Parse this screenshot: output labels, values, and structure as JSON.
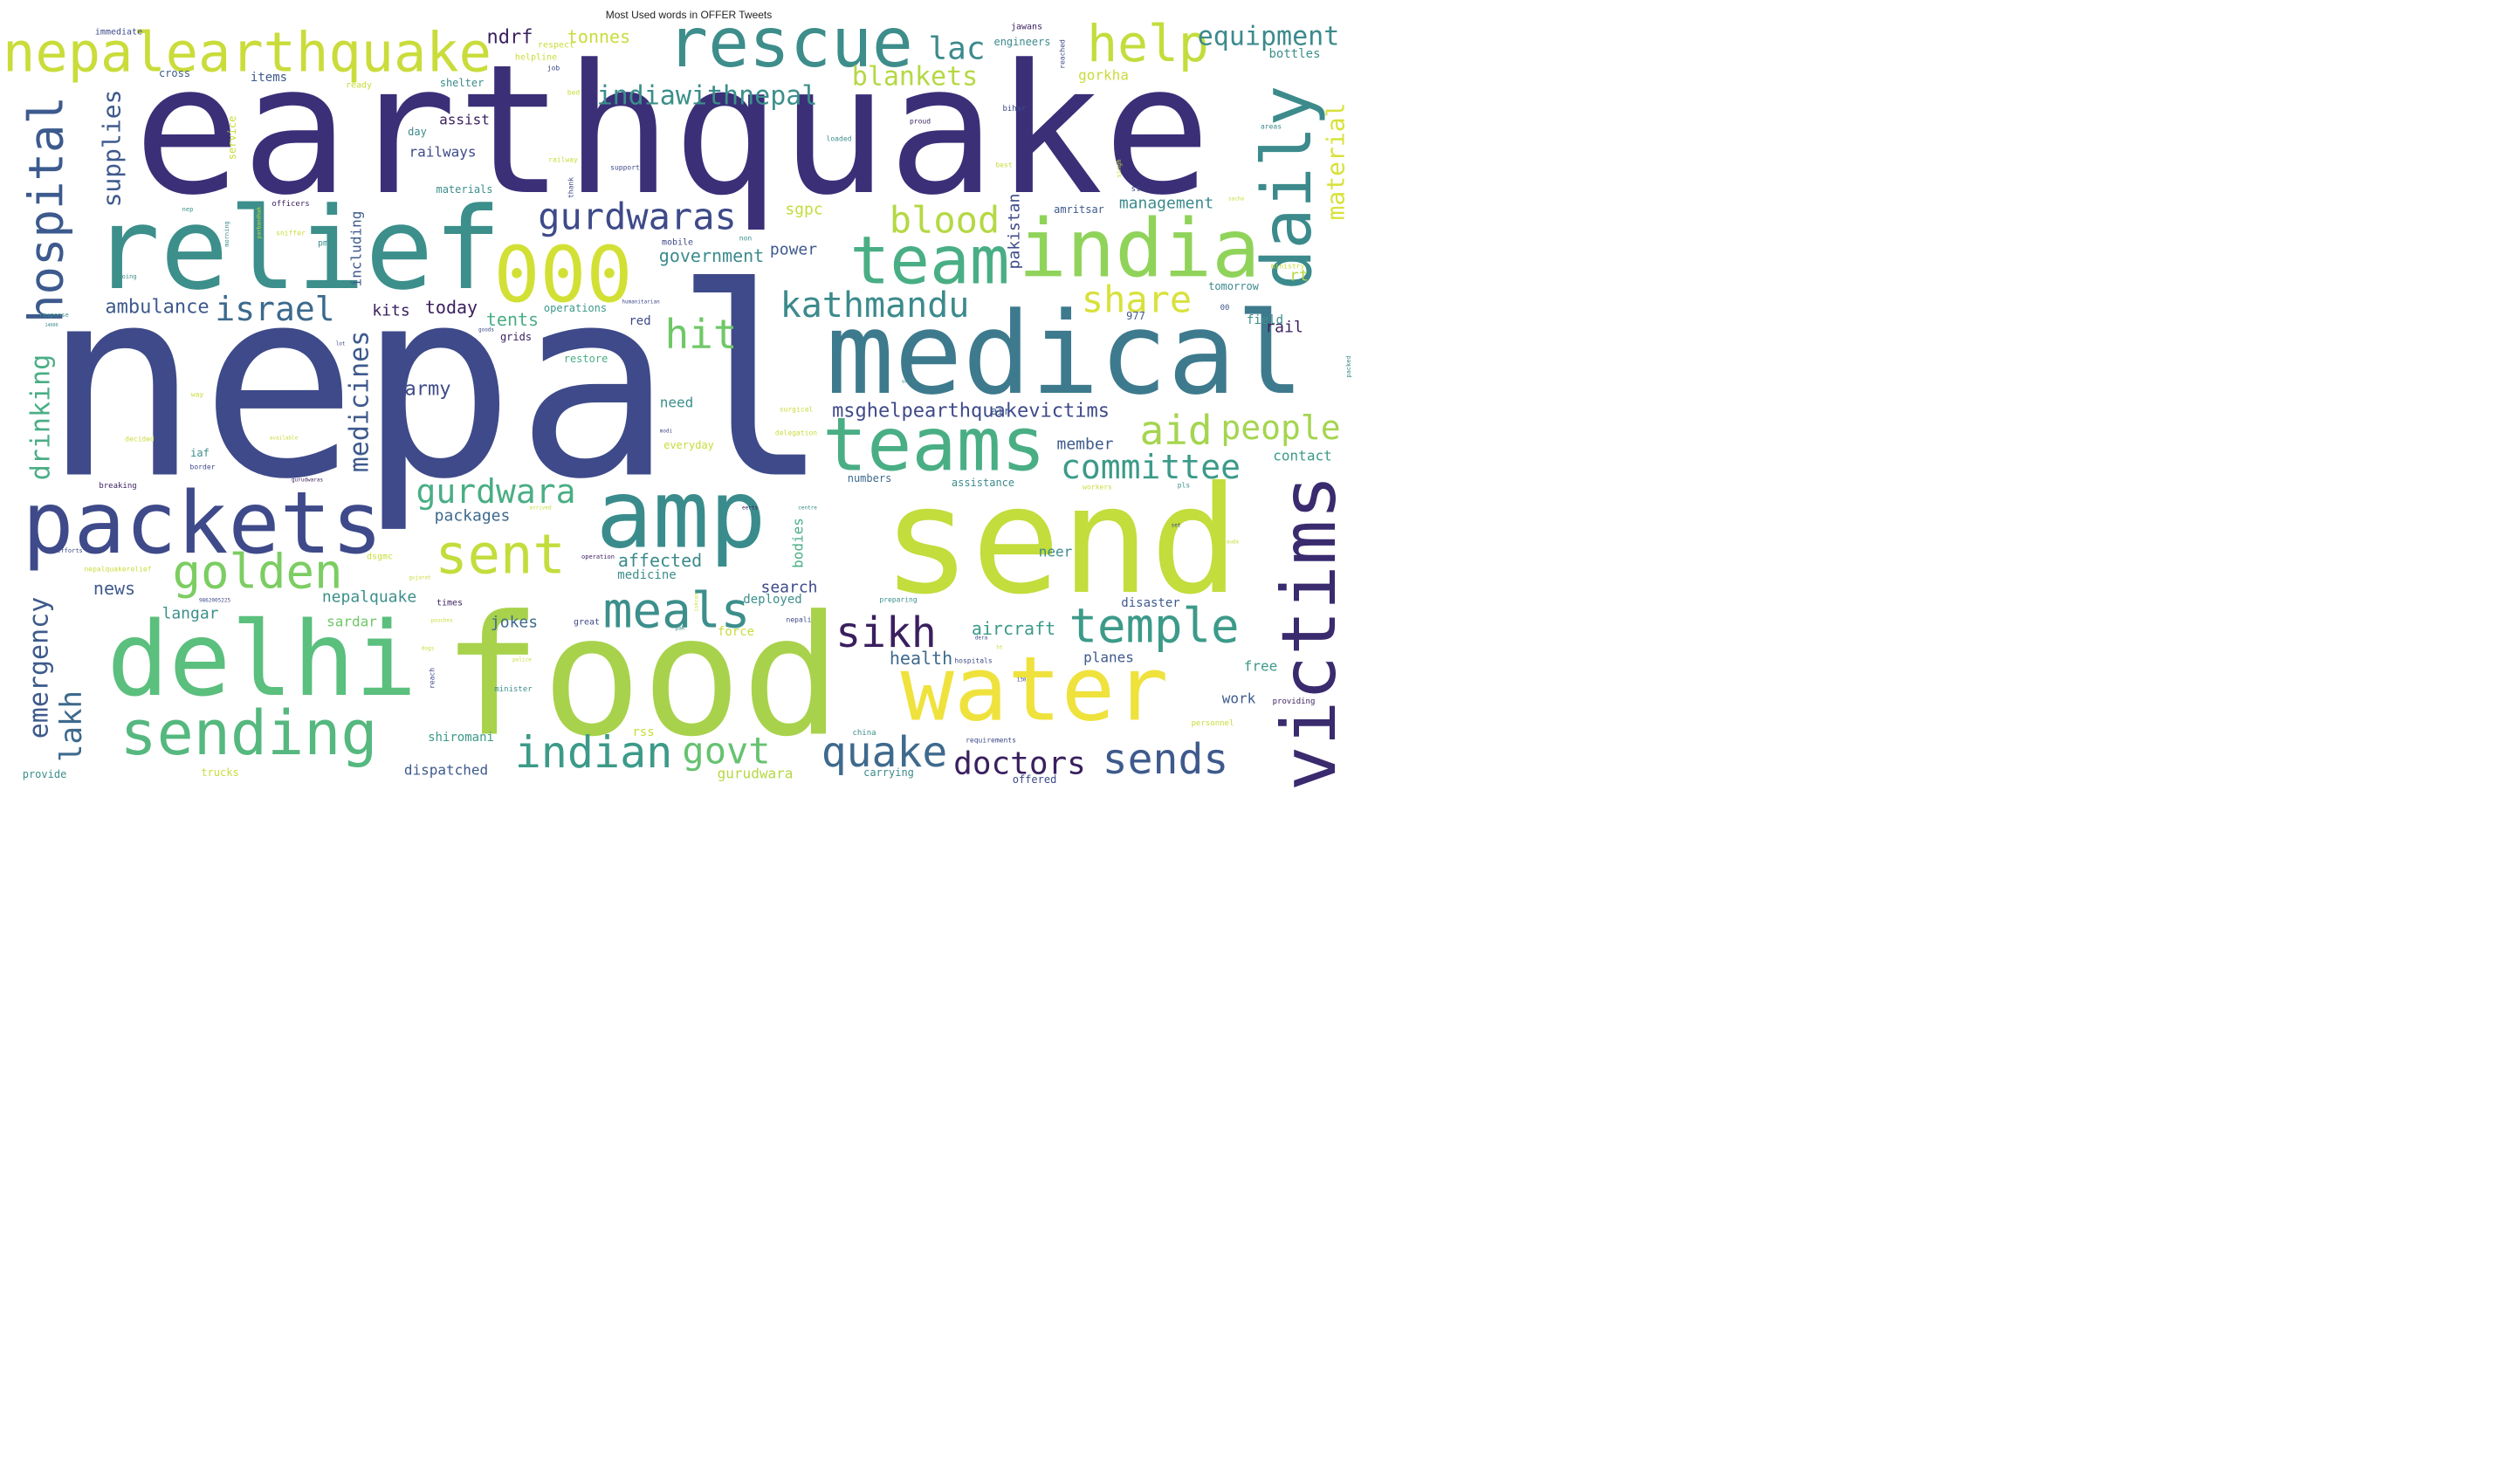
{
  "title": "Most Used words in OFFER Tweets",
  "words": [
    {
      "text": "nepal",
      "color": "#3e4a89"
    },
    {
      "text": "earthquake",
      "color": "#3b2f78"
    },
    {
      "text": "food",
      "color": "#a8d24b"
    },
    {
      "text": "send",
      "color": "#c2dd3c"
    },
    {
      "text": "medical",
      "color": "#3e7a8d"
    },
    {
      "text": "relief",
      "color": "#3c8f8b"
    },
    {
      "text": "delhi",
      "color": "#5bbf7d"
    },
    {
      "text": "packets",
      "color": "#3e4a89"
    },
    {
      "text": "amp",
      "color": "#3a8c8c"
    },
    {
      "text": "water",
      "color": "#efe23d"
    },
    {
      "text": "india",
      "color": "#90d35a"
    },
    {
      "text": "teams",
      "color": "#4aae85"
    },
    {
      "text": "team",
      "color": "#4aae85"
    },
    {
      "text": "000",
      "color": "#d2e035"
    },
    {
      "text": "rescue",
      "color": "#3d8d8b"
    },
    {
      "text": "victims",
      "color": "#3a2a6e"
    },
    {
      "text": "nepalearthquake",
      "color": "#c9dc3a"
    },
    {
      "text": "sending",
      "color": "#55b87f"
    },
    {
      "text": "daily",
      "color": "#3c8a8c"
    },
    {
      "text": "help",
      "color": "#c2dd3c"
    },
    {
      "text": "hospital",
      "color": "#3c5a8d"
    },
    {
      "text": "sent",
      "color": "#c2dd3c"
    },
    {
      "text": "golden",
      "color": "#7ccd62"
    },
    {
      "text": "meals",
      "color": "#3c8f8b"
    },
    {
      "text": "temple",
      "color": "#3c9a89"
    },
    {
      "text": "indian",
      "color": "#3c9a89"
    },
    {
      "text": "quake",
      "color": "#3e6a8d"
    },
    {
      "text": "sends",
      "color": "#3e5a8c"
    },
    {
      "text": "doctors",
      "color": "#3a1f5e"
    },
    {
      "text": "govt",
      "color": "#66c270"
    },
    {
      "text": "sikh",
      "color": "#3a1f5e"
    },
    {
      "text": "emergency",
      "color": "#3e5a8c"
    },
    {
      "text": "drinking",
      "color": "#4aae85"
    },
    {
      "text": "medicines",
      "color": "#3e5a8c"
    },
    {
      "text": "kathmandu",
      "color": "#3c8a8c"
    },
    {
      "text": "hit",
      "color": "#70c868"
    },
    {
      "text": "aid",
      "color": "#a5d550"
    },
    {
      "text": "people",
      "color": "#a5d550"
    },
    {
      "text": "committee",
      "color": "#3c9a89"
    },
    {
      "text": "gurdwara",
      "color": "#4aae85"
    },
    {
      "text": "gurdwaras",
      "color": "#3e4a89"
    },
    {
      "text": "blood",
      "color": "#b5d844"
    },
    {
      "text": "share",
      "color": "#d8e13a"
    },
    {
      "text": "israel",
      "color": "#3c6a8d"
    },
    {
      "text": "supplies",
      "color": "#3e5a8c"
    },
    {
      "text": "lakh",
      "color": "#3e6a8d"
    },
    {
      "text": "material",
      "color": "#d8e13a"
    },
    {
      "text": "equipment",
      "color": "#3c8a8c"
    },
    {
      "text": "lac",
      "color": "#3c8a8c"
    },
    {
      "text": "indiawithnepal",
      "color": "#3c8f8b"
    },
    {
      "text": "blankets",
      "color": "#b5d844"
    },
    {
      "text": "ambulance",
      "color": "#3e5a8c"
    },
    {
      "text": "msghelpearthquakevictims",
      "color": "#3e4a89"
    },
    {
      "text": "ndrf",
      "color": "#3a1f5e"
    },
    {
      "text": "tonnes",
      "color": "#c9dc3a"
    },
    {
      "text": "army",
      "color": "#3e4a89"
    },
    {
      "text": "volunteers",
      "color": "#3e5a8c"
    },
    {
      "text": "aircraft",
      "color": "#3c9a89"
    },
    {
      "text": "health",
      "color": "#3e6a8d"
    },
    {
      "text": "tents",
      "color": "#4aae85"
    },
    {
      "text": "today",
      "color": "#3a1f5e"
    },
    {
      "text": "kits",
      "color": "#3a1f5e"
    },
    {
      "text": "government",
      "color": "#3c8a8c"
    },
    {
      "text": "management",
      "color": "#3c8a8c"
    },
    {
      "text": "pakistan",
      "color": "#3e4a89"
    },
    {
      "text": "rail",
      "color": "#3a1f5e"
    },
    {
      "text": "affected",
      "color": "#3c8a8c"
    },
    {
      "text": "sgpc",
      "color": "#c2dd3c"
    },
    {
      "text": "power",
      "color": "#3e5a8c"
    },
    {
      "text": "rt",
      "color": "#b5d844"
    },
    {
      "text": "news",
      "color": "#3e5a8c"
    },
    {
      "text": "packages",
      "color": "#3e6a8d"
    },
    {
      "text": "search",
      "color": "#3e4a89"
    },
    {
      "text": "nepalquake",
      "color": "#3c8f8b"
    },
    {
      "text": "langar",
      "color": "#3c8f8b"
    },
    {
      "text": "jokes",
      "color": "#3e6a8d"
    },
    {
      "text": "sardar",
      "color": "#70c868"
    },
    {
      "text": "deployed",
      "color": "#3c8f8b"
    },
    {
      "text": "member",
      "color": "#3e5a8c"
    },
    {
      "text": "contact",
      "color": "#3c9a89"
    },
    {
      "text": "including",
      "color": "#3e5a8c"
    },
    {
      "text": "bodies",
      "color": "#4aae85"
    },
    {
      "text": "neer",
      "color": "#3c8a8c"
    },
    {
      "text": "disaster",
      "color": "#3e5a8c"
    },
    {
      "text": "planes",
      "color": "#3e5a8c"
    },
    {
      "text": "free",
      "color": "#3c9a89"
    },
    {
      "text": "work",
      "color": "#3e5a8c"
    },
    {
      "text": "dispatched",
      "color": "#3e5a8c"
    },
    {
      "text": "gurudwara",
      "color": "#b5d844"
    },
    {
      "text": "shiromani",
      "color": "#3c9a89"
    },
    {
      "text": "medicine",
      "color": "#3c8f8b"
    },
    {
      "text": "assist",
      "color": "#3a1f5e"
    },
    {
      "text": "railways",
      "color": "#3e4a89"
    },
    {
      "text": "need",
      "color": "#3c8f8b"
    },
    {
      "text": "field",
      "color": "#3c8f8b"
    },
    {
      "text": "gorkha",
      "color": "#c9dc3a"
    },
    {
      "text": "bottles",
      "color": "#3c8f8b"
    },
    {
      "text": "items",
      "color": "#3e5a8c"
    },
    {
      "text": "cross",
      "color": "#3e5a8c"
    },
    {
      "text": "shelter",
      "color": "#3c8a8c"
    },
    {
      "text": "day",
      "color": "#3c8a8c"
    },
    {
      "text": "materials",
      "color": "#3c8f8b"
    },
    {
      "text": "service",
      "color": "#c9dc3a"
    },
    {
      "text": "amritsar",
      "color": "#3e5a8c"
    },
    {
      "text": "tomorrow",
      "color": "#3c8a8c"
    },
    {
      "text": "iaf",
      "color": "#3c8f8b"
    },
    {
      "text": "red",
      "color": "#3e4a89"
    },
    {
      "text": "grids",
      "color": "#3a1f5e"
    },
    {
      "text": "restore",
      "color": "#4aae85"
    },
    {
      "text": "operations",
      "color": "#3c9a89"
    },
    {
      "text": "assistance",
      "color": "#3c8a8c"
    },
    {
      "text": "numbers",
      "color": "#3e6a8d"
    },
    {
      "text": "air",
      "color": "#3e5a8c"
    },
    {
      "text": "rss",
      "color": "#c9dc3a"
    },
    {
      "text": "force",
      "color": "#c9dc3a"
    },
    {
      "text": "great",
      "color": "#3e4a89"
    },
    {
      "text": "times",
      "color": "#3a1f5e"
    },
    {
      "text": "provide",
      "color": "#3c8f8b"
    },
    {
      "text": "trucks",
      "color": "#c9dc3a"
    },
    {
      "text": "carrying",
      "color": "#3c8a8c"
    },
    {
      "text": "offered",
      "color": "#3e4a89"
    },
    {
      "text": "everyday",
      "color": "#c9dc3a"
    },
    {
      "text": "engineers",
      "color": "#3c8a8c"
    },
    {
      "text": "jawans",
      "color": "#3a1f5e"
    },
    {
      "text": "immediate",
      "color": "#3e4a89"
    },
    {
      "text": "respect",
      "color": "#c9dc3a"
    },
    {
      "text": "helpline",
      "color": "#c9dc3a"
    },
    {
      "text": "ready",
      "color": "#c9dc3a"
    },
    {
      "text": "job",
      "color": "#3e4a89"
    },
    {
      "text": "bed",
      "color": "#c9dc3a"
    },
    {
      "text": "reached",
      "color": "#3e4a89"
    },
    {
      "text": "bihar",
      "color": "#3e4a89"
    },
    {
      "text": "proud",
      "color": "#3a1f5e"
    },
    {
      "text": "loaded",
      "color": "#3c8f8b"
    },
    {
      "text": "areas",
      "color": "#3c8a8c"
    },
    {
      "text": "best",
      "color": "#c9dc3a"
    },
    {
      "text": "support",
      "color": "#3e4a89"
    },
    {
      "text": "railway",
      "color": "#c9dc3a"
    },
    {
      "text": "thank",
      "color": "#3e4a89"
    },
    {
      "text": "singh",
      "color": "#c9dc3a"
    },
    {
      "text": "st",
      "color": "#3e4a89"
    },
    {
      "text": "sacha",
      "color": "#c9dc3a"
    },
    {
      "text": "ministry",
      "color": "#c9dc3a"
    },
    {
      "text": "officers",
      "color": "#3a1f5e"
    },
    {
      "text": "nep",
      "color": "#3c8f8b"
    },
    {
      "text": "parbandhak",
      "color": "#c9dc3a"
    },
    {
      "text": "morning",
      "color": "#3c8f8b"
    },
    {
      "text": "sniffer",
      "color": "#c9dc3a"
    },
    {
      "text": "pm",
      "color": "#3c8f8b"
    },
    {
      "text": "doing",
      "color": "#3c8f8b"
    },
    {
      "text": "mobile",
      "color": "#3e4a89"
    },
    {
      "text": "non",
      "color": "#3c8f8b"
    },
    {
      "text": "response",
      "color": "#3c8f8b"
    },
    {
      "text": "14000",
      "color": "#3c8a8c"
    },
    {
      "text": "humanitarian",
      "color": "#3e4a89"
    },
    {
      "text": "goods",
      "color": "#3e4a89"
    },
    {
      "text": "lot",
      "color": "#3e4a89"
    },
    {
      "text": "977",
      "color": "#3e5a8c"
    },
    {
      "text": "00",
      "color": "#3e5a8c"
    },
    {
      "text": "packed",
      "color": "#3c8a8c"
    },
    {
      "text": "units",
      "color": "#3c8a8c"
    },
    {
      "text": "surgical",
      "color": "#c9dc3a"
    },
    {
      "text": "way",
      "color": "#c9dc3a"
    },
    {
      "text": "modi",
      "color": "#3e4a89"
    },
    {
      "text": "delegation",
      "color": "#c9dc3a"
    },
    {
      "text": "decided",
      "color": "#c9dc3a"
    },
    {
      "text": "available",
      "color": "#c9dc3a"
    },
    {
      "text": "border",
      "color": "#3e4a89"
    },
    {
      "text": "breaking",
      "color": "#3a1f5e"
    },
    {
      "text": "gurudwaras",
      "color": "#3a1f5e"
    },
    {
      "text": "workers",
      "color": "#c9dc3a"
    },
    {
      "text": "pls",
      "color": "#3c8f8b"
    },
    {
      "text": "arrived",
      "color": "#c9dc3a"
    },
    {
      "text": "eerts",
      "color": "#3a1f5e"
    },
    {
      "text": "centre",
      "color": "#3c8a8c"
    },
    {
      "text": "set",
      "color": "#3e4a89"
    },
    {
      "text": "sauda",
      "color": "#c9dc3a"
    },
    {
      "text": "efforts",
      "color": "#3e4a89"
    },
    {
      "text": "operation",
      "color": "#3a1f5e"
    },
    {
      "text": "dsgmc",
      "color": "#c9dc3a"
    },
    {
      "text": "nepalquakerelief",
      "color": "#c9dc3a"
    },
    {
      "text": "gujarat",
      "color": "#c9dc3a"
    },
    {
      "text": "9862005225",
      "color": "#3e4a89"
    },
    {
      "text": "iskcon",
      "color": "#c9dc3a"
    },
    {
      "text": "preparing",
      "color": "#3c8f8b"
    },
    {
      "text": "pouches",
      "color": "#c9dc3a"
    },
    {
      "text": "pak",
      "color": "#3c8f8b"
    },
    {
      "text": "nepali",
      "color": "#3e4a89"
    },
    {
      "text": "dera",
      "color": "#3e4a89"
    },
    {
      "text": "hospitals",
      "color": "#3e4a89"
    },
    {
      "text": "ht",
      "color": "#c9dc3a"
    },
    {
      "text": "dogs",
      "color": "#c9dc3a"
    },
    {
      "text": "police",
      "color": "#c9dc3a"
    },
    {
      "text": "reach",
      "color": "#3e4a89"
    },
    {
      "text": "minister",
      "color": "#3c8f8b"
    },
    {
      "text": "130",
      "color": "#3e4a89"
    },
    {
      "text": "providing",
      "color": "#3a1f5e"
    },
    {
      "text": "personnel",
      "color": "#c9dc3a"
    },
    {
      "text": "china",
      "color": "#3c8f8b"
    },
    {
      "text": "requirements",
      "color": "#3e4a89"
    }
  ]
}
